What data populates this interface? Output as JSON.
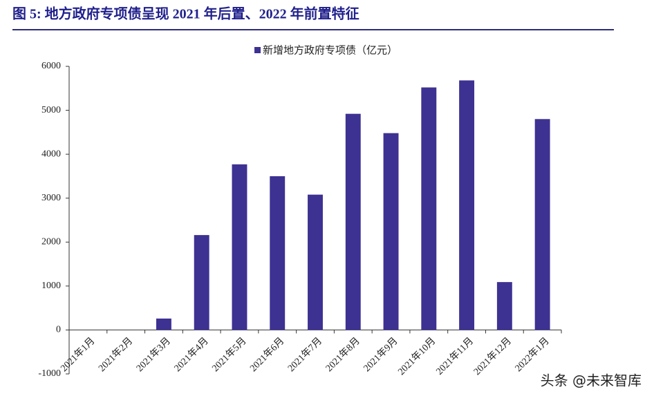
{
  "chart_data": {
    "type": "bar",
    "title": "图 5:  地方政府专项债呈现 2021 年后置、2022 年前置特征",
    "categories": [
      "2021年1月",
      "2021年2月",
      "2021年3月",
      "2021年4月",
      "2021年5月",
      "2021年6月",
      "2021年7月",
      "2021年8月",
      "2021年9月",
      "2021年10月",
      "2021年11月",
      "2021年12月",
      "2022年1月"
    ],
    "series": [
      {
        "name": "新增地方政府专项债（亿元）",
        "color": "#3d3192",
        "values": [
          0,
          0,
          260,
          2160,
          3770,
          3500,
          3080,
          4920,
          4480,
          5520,
          5680,
          1090,
          4800
        ]
      }
    ],
    "ylim": [
      -1000,
      6000
    ],
    "yticks": [
      -1000,
      0,
      1000,
      2000,
      3000,
      4000,
      5000,
      6000
    ],
    "legend": "top",
    "watermark": "头条 @未来智库"
  }
}
